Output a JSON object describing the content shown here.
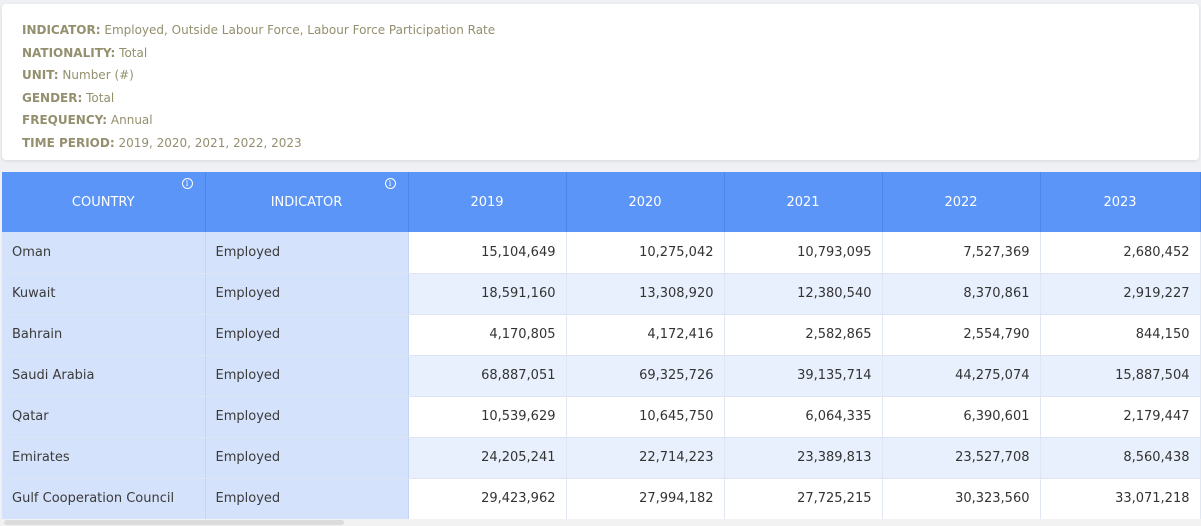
{
  "meta": [
    {
      "key": "INDICATOR:",
      "value": "Employed, Outside Labour Force, Labour Force Participation Rate"
    },
    {
      "key": "NATIONALITY:",
      "value": "Total"
    },
    {
      "key": "UNIT:",
      "value": "Number (#)"
    },
    {
      "key": "GENDER:",
      "value": "Total"
    },
    {
      "key": "FREQUENCY:",
      "value": "Annual"
    },
    {
      "key": "TIME PERIOD:",
      "value": "2019, 2020, 2021, 2022, 2023"
    }
  ],
  "table": {
    "headers": [
      "COUNTRY",
      "INDICATOR",
      "2019",
      "2020",
      "2021",
      "2022",
      "2023"
    ],
    "info_icon_glyph": "i",
    "rows": [
      {
        "country": "Oman",
        "indicator": "Employed",
        "values": [
          "15,104,649",
          "10,275,042",
          "10,793,095",
          "7,527,369",
          "2,680,452"
        ]
      },
      {
        "country": "Kuwait",
        "indicator": "Employed",
        "values": [
          "18,591,160",
          "13,308,920",
          "12,380,540",
          "8,370,861",
          "2,919,227"
        ]
      },
      {
        "country": "Bahrain",
        "indicator": "Employed",
        "values": [
          "4,170,805",
          "4,172,416",
          "2,582,865",
          "2,554,790",
          "844,150"
        ]
      },
      {
        "country": "Saudi Arabia",
        "indicator": "Employed",
        "values": [
          "68,887,051",
          "69,325,726",
          "39,135,714",
          "44,275,074",
          "15,887,504"
        ]
      },
      {
        "country": "Qatar",
        "indicator": "Employed",
        "values": [
          "10,539,629",
          "10,645,750",
          "6,064,335",
          "6,390,601",
          "2,179,447"
        ]
      },
      {
        "country": "Emirates",
        "indicator": "Employed",
        "values": [
          "24,205,241",
          "22,714,223",
          "23,389,813",
          "23,527,708",
          "8,560,438"
        ]
      },
      {
        "country": "Gulf Cooperation Council",
        "indicator": "Employed",
        "values": [
          "29,423,962",
          "27,994,182",
          "27,725,215",
          "30,323,560",
          "33,071,218"
        ]
      }
    ]
  },
  "colors": {
    "header_bg": "#5b95f8",
    "fixed_col_bg": "#d4e2fb",
    "even_row_bg": "#e9f0fd",
    "meta_text": "#948f6e"
  }
}
